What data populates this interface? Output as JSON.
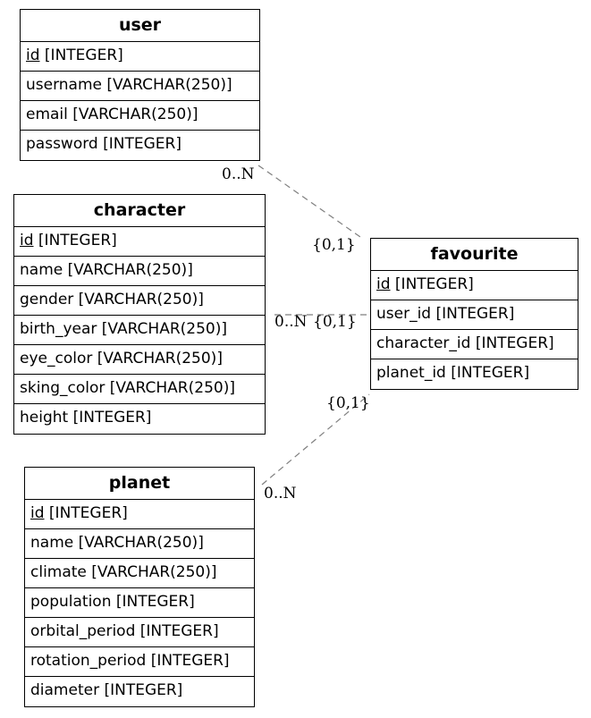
{
  "entities": {
    "user": {
      "name": "user",
      "fields": [
        {
          "key": "id",
          "type": "[INTEGER]"
        },
        {
          "text": "username [VARCHAR(250)]"
        },
        {
          "text": "email [VARCHAR(250)]"
        },
        {
          "text": "password [INTEGER]"
        }
      ]
    },
    "character": {
      "name": "character",
      "fields": [
        {
          "key": "id",
          "type": "[INTEGER]"
        },
        {
          "text": "name [VARCHAR(250)]"
        },
        {
          "text": "gender [VARCHAR(250)]"
        },
        {
          "text": "birth_year [VARCHAR(250)]"
        },
        {
          "text": "eye_color [VARCHAR(250)]"
        },
        {
          "text": "sking_color [VARCHAR(250)]"
        },
        {
          "text": "height [INTEGER]"
        }
      ]
    },
    "planet": {
      "name": "planet",
      "fields": [
        {
          "key": "id",
          "type": "[INTEGER]"
        },
        {
          "text": "name [VARCHAR(250)]"
        },
        {
          "text": "climate [VARCHAR(250)]"
        },
        {
          "text": "population [INTEGER]"
        },
        {
          "text": "orbital_period [INTEGER]"
        },
        {
          "text": "rotation_period [INTEGER]"
        },
        {
          "text": "diameter [INTEGER]"
        }
      ]
    },
    "favourite": {
      "name": "favourite",
      "fields": [
        {
          "key": "id",
          "type": "[INTEGER]"
        },
        {
          "text": "user_id [INTEGER]"
        },
        {
          "text": "character_id [INTEGER]"
        },
        {
          "text": "planet_id [INTEGER]"
        }
      ]
    }
  },
  "relationships": {
    "user_favourite": {
      "from_card": "0..N",
      "to_card": "{0,1}"
    },
    "character_favourite": {
      "from_card": "0..N",
      "to_card": "{0,1}"
    },
    "planet_favourite": {
      "from_card": "0..N",
      "to_card": "{0,1}"
    }
  },
  "colors": {
    "line": "#7f7f7f",
    "border": "#000000"
  }
}
